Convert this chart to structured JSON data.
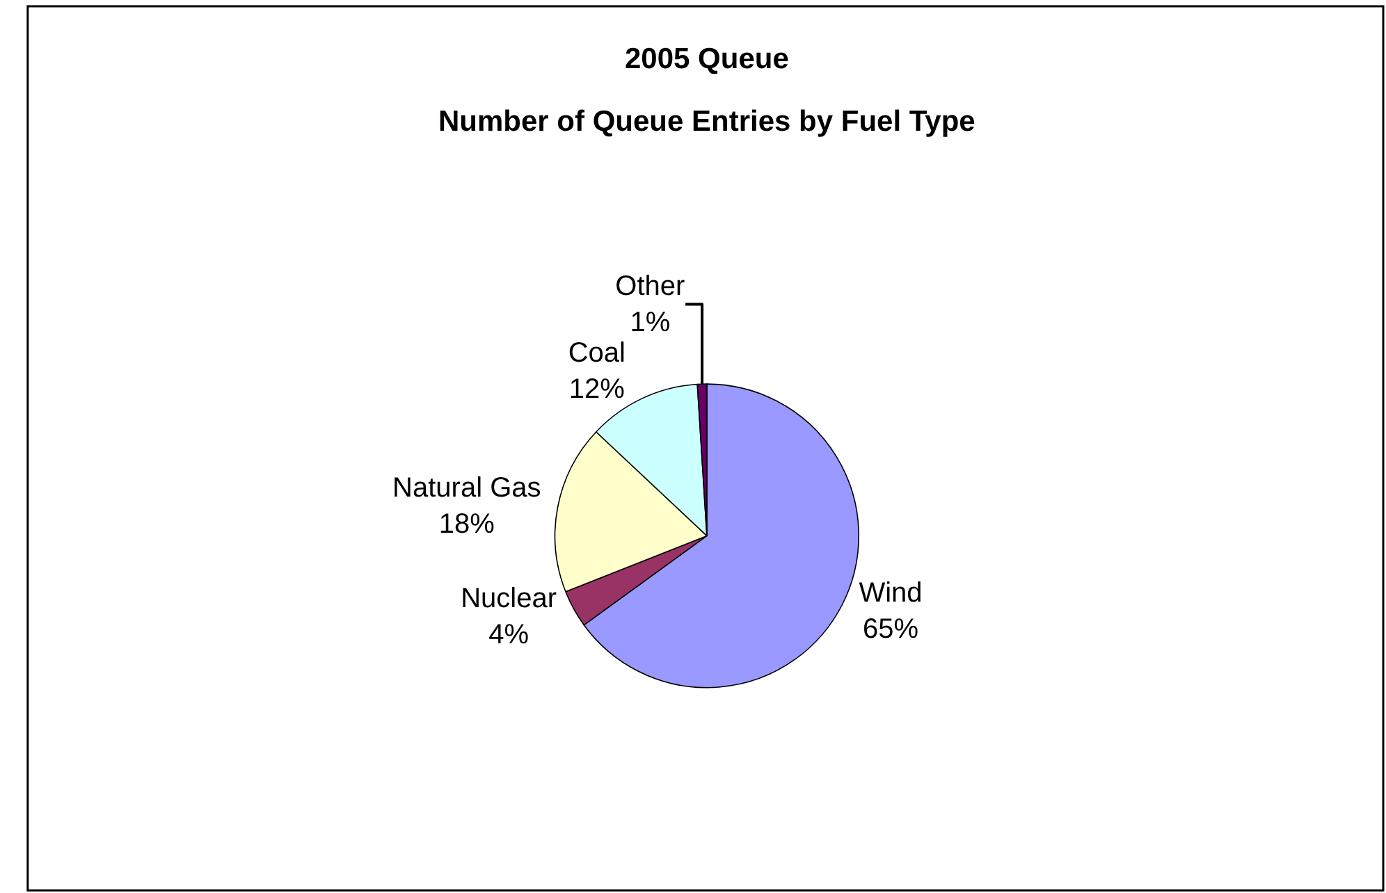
{
  "chart_data": {
    "type": "pie",
    "title": "2005 Queue",
    "subtitle": "Number of Queue Entries by Fuel Type",
    "categories": [
      "Wind",
      "Nuclear",
      "Natural Gas",
      "Coal",
      "Other"
    ],
    "values": [
      65,
      4,
      18,
      12,
      1
    ],
    "value_labels": [
      "65%",
      "4%",
      "18%",
      "12%",
      "1%"
    ],
    "colors": [
      "#9999ff",
      "#993366",
      "#ffffcc",
      "#ccffff",
      "#660066"
    ],
    "legend": false
  }
}
